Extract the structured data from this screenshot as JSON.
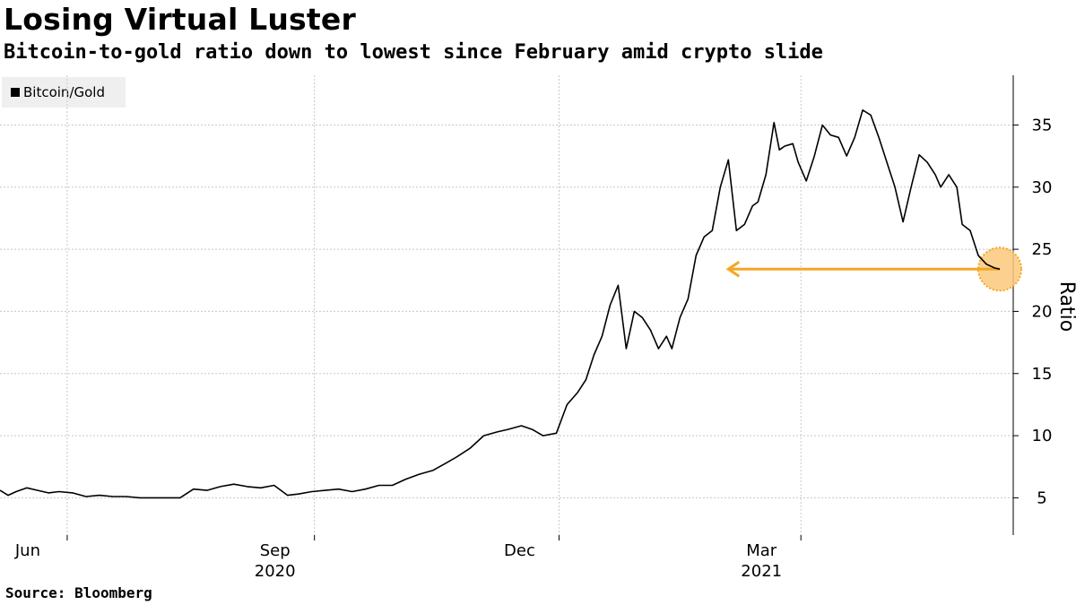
{
  "header": {
    "title": "Losing Virtual Luster",
    "subtitle": "Bitcoin-to-gold ratio down to lowest since February amid crypto slide"
  },
  "legend": {
    "label": "Bitcoin/Gold"
  },
  "source": "Source: Bloomberg",
  "colors": {
    "line": "#000000",
    "annotation": "#f5a623",
    "annotation_fill": "#fcc97c",
    "grid": "#c8c8c8"
  },
  "chart_data": {
    "type": "line",
    "title": "Losing Virtual Luster",
    "subtitle": "Bitcoin-to-gold ratio down to lowest since February amid crypto slide",
    "ylabel": "Ratio",
    "ylim": [
      2,
      39
    ],
    "yticks": [
      5,
      10,
      15,
      20,
      25,
      30,
      35
    ],
    "xlim": [
      "2020-05-07",
      "2021-05-19"
    ],
    "xticks": [
      {
        "date": "2020-06-01",
        "label": "Jun",
        "year": ""
      },
      {
        "date": "2020-09-01",
        "label": "Sep",
        "year": "2020"
      },
      {
        "date": "2020-12-01",
        "label": "Dec",
        "year": ""
      },
      {
        "date": "2021-03-01",
        "label": "Mar",
        "year": "2021"
      }
    ],
    "grid": true,
    "legend_position": "top-left",
    "series": [
      {
        "name": "Bitcoin/Gold",
        "x": [
          "2020-05-07",
          "2020-05-10",
          "2020-05-13",
          "2020-05-17",
          "2020-05-21",
          "2020-05-25",
          "2020-05-29",
          "2020-06-03",
          "2020-06-08",
          "2020-06-13",
          "2020-06-18",
          "2020-06-23",
          "2020-06-28",
          "2020-07-03",
          "2020-07-08",
          "2020-07-13",
          "2020-07-18",
          "2020-07-23",
          "2020-07-28",
          "2020-08-02",
          "2020-08-07",
          "2020-08-12",
          "2020-08-17",
          "2020-08-22",
          "2020-08-26",
          "2020-08-31",
          "2020-09-05",
          "2020-09-10",
          "2020-09-15",
          "2020-09-20",
          "2020-09-25",
          "2020-09-30",
          "2020-10-05",
          "2020-10-10",
          "2020-10-15",
          "2020-10-20",
          "2020-10-24",
          "2020-10-29",
          "2020-11-03",
          "2020-11-08",
          "2020-11-12",
          "2020-11-17",
          "2020-11-21",
          "2020-11-25",
          "2020-11-30",
          "2020-12-04",
          "2020-12-08",
          "2020-12-11",
          "2020-12-14",
          "2020-12-17",
          "2020-12-20",
          "2020-12-23",
          "2020-12-26",
          "2020-12-29",
          "2021-01-01",
          "2021-01-04",
          "2021-01-07",
          "2021-01-10",
          "2021-01-12",
          "2021-01-15",
          "2021-01-18",
          "2021-01-21",
          "2021-01-24",
          "2021-01-27",
          "2021-01-30",
          "2021-02-02",
          "2021-02-05",
          "2021-02-08",
          "2021-02-11",
          "2021-02-13",
          "2021-02-16",
          "2021-02-19",
          "2021-02-21",
          "2021-02-23",
          "2021-02-26",
          "2021-02-28",
          "2021-03-03",
          "2021-03-06",
          "2021-03-09",
          "2021-03-12",
          "2021-03-15",
          "2021-03-18",
          "2021-03-21",
          "2021-03-24",
          "2021-03-27",
          "2021-03-30",
          "2021-04-02",
          "2021-04-05",
          "2021-04-08",
          "2021-04-11",
          "2021-04-14",
          "2021-04-17",
          "2021-04-20",
          "2021-04-22",
          "2021-04-25",
          "2021-04-28",
          "2021-04-30",
          "2021-05-03",
          "2021-05-06",
          "2021-05-09",
          "2021-05-12",
          "2021-05-14"
        ],
        "values": [
          5.6,
          5.2,
          5.5,
          5.8,
          5.6,
          5.4,
          5.5,
          5.4,
          5.1,
          5.2,
          5.1,
          5.1,
          5.0,
          5.0,
          5.0,
          5.0,
          5.7,
          5.6,
          5.9,
          6.1,
          5.9,
          5.8,
          6.0,
          5.2,
          5.3,
          5.5,
          5.6,
          5.7,
          5.5,
          5.7,
          6.0,
          6.0,
          6.5,
          6.9,
          7.2,
          7.8,
          8.3,
          9.0,
          10.0,
          10.3,
          10.5,
          10.8,
          10.5,
          10.0,
          10.2,
          12.5,
          13.5,
          14.5,
          16.5,
          18.0,
          20.5,
          22.1,
          17.0,
          20.0,
          19.5,
          18.5,
          17.0,
          18.0,
          17.0,
          19.5,
          21.0,
          24.5,
          26.0,
          26.5,
          30.0,
          32.2,
          26.5,
          27.0,
          28.5,
          28.8,
          31.0,
          35.2,
          33.0,
          33.3,
          33.5,
          32.0,
          30.5,
          32.5,
          35.0,
          34.2,
          34.0,
          32.5,
          34.0,
          36.2,
          35.8,
          34.0,
          32.0,
          30.0,
          27.2,
          30.0,
          32.6,
          32.0,
          31.0,
          30.0,
          31.0,
          30.0,
          27.0,
          26.5,
          24.5,
          23.8,
          23.5,
          23.4
        ]
      }
    ],
    "annotations": [
      {
        "type": "arrow",
        "from_date": "2021-05-14",
        "to_date": "2021-02-02",
        "value": 23.4
      },
      {
        "type": "highlight-circle",
        "date": "2021-05-14",
        "value": 23.4
      }
    ]
  }
}
